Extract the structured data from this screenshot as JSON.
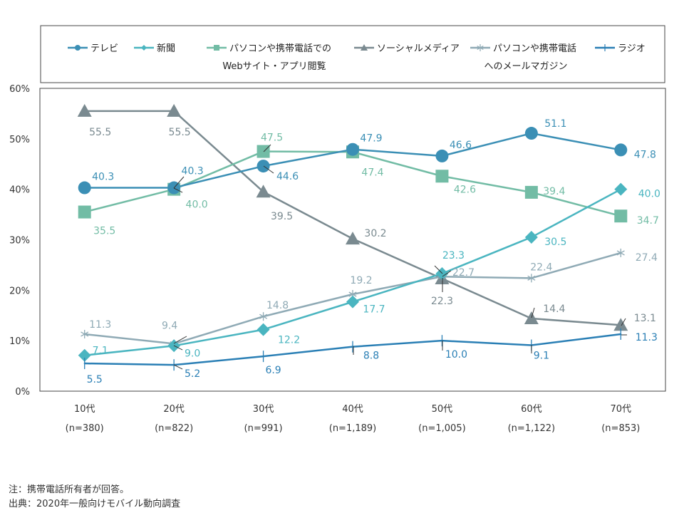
{
  "chart_data": {
    "type": "line",
    "categories": [
      "10代",
      "20代",
      "30代",
      "40代",
      "50代",
      "60代",
      "70代"
    ],
    "category_n": [
      "(n=380)",
      "(n=822)",
      "(n=991)",
      "(n=1,189)",
      "(n=1,005)",
      "(n=1,122)",
      "(n=853)"
    ],
    "y_ticks": [
      "0%",
      "10%",
      "20%",
      "30%",
      "40%",
      "50%",
      "60%"
    ],
    "ylim": [
      0,
      60
    ],
    "grid": false,
    "legend_position": "top",
    "series": [
      {
        "name": "テレビ",
        "marker": "circle",
        "color": "#3b8fb5",
        "values": [
          40.3,
          40.3,
          44.6,
          47.9,
          46.6,
          51.1,
          47.8
        ],
        "labels": [
          "40.3",
          "40.3",
          "44.6",
          "47.9",
          "46.6",
          "51.1",
          "47.8"
        ]
      },
      {
        "name": "新聞",
        "marker": "diamond",
        "color": "#4ab5c0",
        "values": [
          7.1,
          9.0,
          12.2,
          17.7,
          23.3,
          30.5,
          40.0
        ],
        "labels": [
          "7.1",
          "9.0",
          "12.2",
          "17.7",
          "23.3",
          "30.5",
          "40.0"
        ]
      },
      {
        "name": "パソコンや携帯電話での",
        "name2": "Webサイト・アプリ閲覧",
        "marker": "square",
        "color": "#72bca5",
        "values": [
          35.5,
          40.0,
          47.5,
          47.4,
          42.6,
          39.4,
          34.7
        ],
        "labels": [
          "35.5",
          "40.0",
          "47.5",
          "47.4",
          "42.6",
          "39.4",
          "34.7"
        ]
      },
      {
        "name": "ソーシャルメディア",
        "marker": "triangle",
        "color": "#7a8a90",
        "values": [
          55.5,
          55.5,
          39.5,
          30.2,
          22.3,
          14.4,
          13.1
        ],
        "labels": [
          "55.5",
          "55.5",
          "39.5",
          "30.2",
          "22.3",
          "14.4",
          "13.1"
        ]
      },
      {
        "name": "パソコンや携帯電話",
        "name2": "へのメールマガジン",
        "marker": "star",
        "color": "#8faab5",
        "values": [
          11.3,
          9.4,
          14.8,
          19.2,
          22.7,
          22.4,
          27.4
        ],
        "labels": [
          "11.3",
          "9.4",
          "14.8",
          "19.2",
          "22.7",
          "22.4",
          "27.4"
        ]
      },
      {
        "name": "ラジオ",
        "marker": "plus",
        "color": "#2a7fb5",
        "values": [
          5.5,
          5.2,
          6.9,
          8.8,
          10.0,
          9.1,
          11.3
        ],
        "labels": [
          "5.5",
          "5.2",
          "6.9",
          "8.8",
          "10.0",
          "9.1",
          "11.3"
        ]
      }
    ]
  },
  "notes": {
    "note1": "注：携帯電話所有者が回答。",
    "note2": "出典：2020年一般向けモバイル動向調査"
  }
}
